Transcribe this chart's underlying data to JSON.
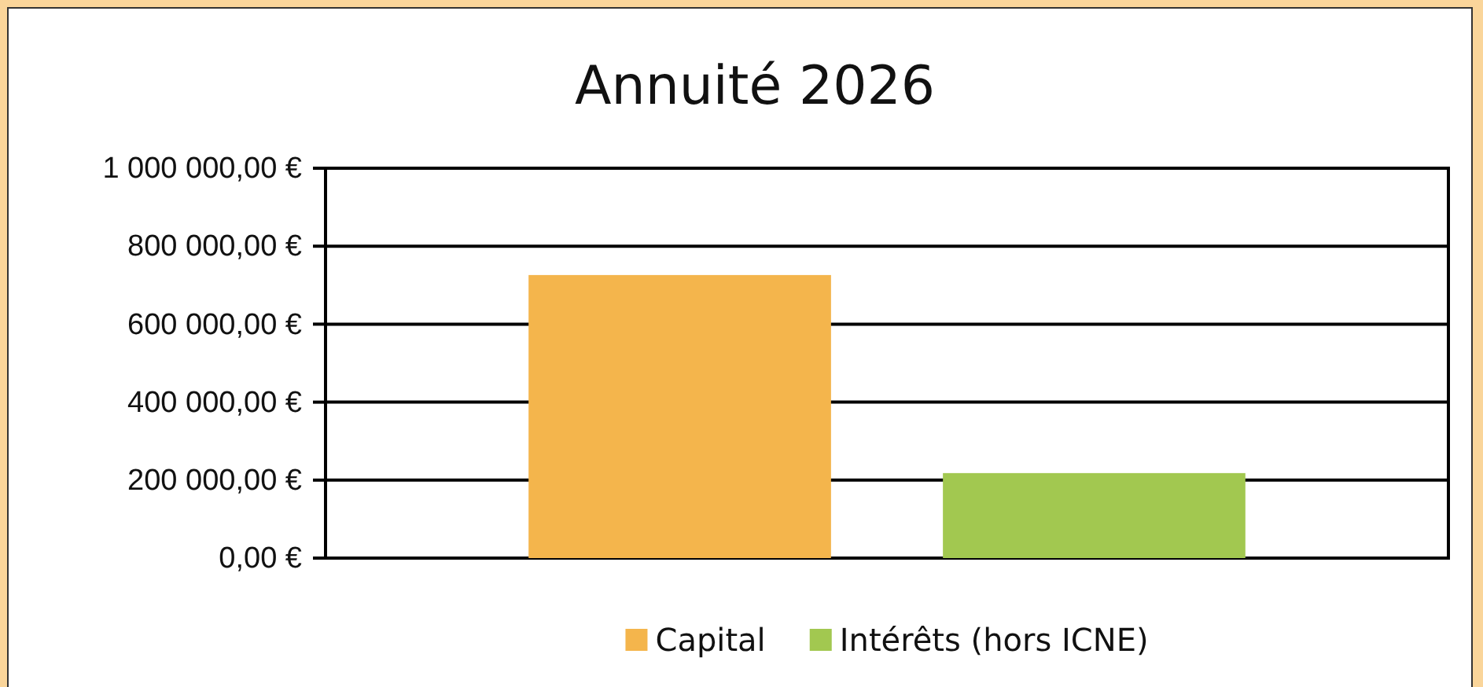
{
  "chart_data": {
    "type": "bar",
    "title": "Annuité 2026",
    "categories": [
      null
    ],
    "series": [
      {
        "name": "Capital",
        "color": "#f4b54c",
        "values": [
          726000
        ]
      },
      {
        "name": "Intérêts (hors ICNE)",
        "color": "#a2c850",
        "values": [
          218000
        ]
      }
    ],
    "ylim": [
      0,
      1000000
    ],
    "yticks": [
      {
        "value": 0,
        "label": "0,00 €"
      },
      {
        "value": 200000,
        "label": "200 000,00 €"
      },
      {
        "value": 400000,
        "label": "400 000,00 €"
      },
      {
        "value": 600000,
        "label": "600 000,00 €"
      },
      {
        "value": 800000,
        "label": "800 000,00 €"
      },
      {
        "value": 1000000,
        "label": "1 000 000,00 €"
      }
    ],
    "grid": "y",
    "legend": "bottom"
  }
}
